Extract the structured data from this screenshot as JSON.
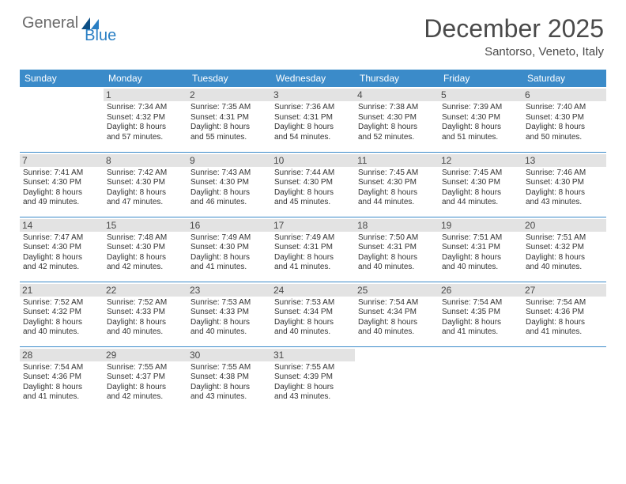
{
  "brand": {
    "general": "General",
    "blue": "Blue"
  },
  "title": "December 2025",
  "location": "Santorso, Veneto, Italy",
  "colors": {
    "header_bg": "#3b8bc9",
    "header_fg": "#ffffff",
    "daynum_bg": "#e3e3e3",
    "rule": "#3b8bc9",
    "logo_gray": "#6b6b6b",
    "logo_blue": "#2a7fc4",
    "sail_dark": "#0b4e85",
    "sail_light": "#2a7fc4"
  },
  "weekdays": [
    "Sunday",
    "Monday",
    "Tuesday",
    "Wednesday",
    "Thursday",
    "Friday",
    "Saturday"
  ],
  "weeks": [
    [
      {
        "n": "",
        "lines": []
      },
      {
        "n": "1",
        "lines": [
          "Sunrise: 7:34 AM",
          "Sunset: 4:32 PM",
          "Daylight: 8 hours",
          "and 57 minutes."
        ]
      },
      {
        "n": "2",
        "lines": [
          "Sunrise: 7:35 AM",
          "Sunset: 4:31 PM",
          "Daylight: 8 hours",
          "and 55 minutes."
        ]
      },
      {
        "n": "3",
        "lines": [
          "Sunrise: 7:36 AM",
          "Sunset: 4:31 PM",
          "Daylight: 8 hours",
          "and 54 minutes."
        ]
      },
      {
        "n": "4",
        "lines": [
          "Sunrise: 7:38 AM",
          "Sunset: 4:30 PM",
          "Daylight: 8 hours",
          "and 52 minutes."
        ]
      },
      {
        "n": "5",
        "lines": [
          "Sunrise: 7:39 AM",
          "Sunset: 4:30 PM",
          "Daylight: 8 hours",
          "and 51 minutes."
        ]
      },
      {
        "n": "6",
        "lines": [
          "Sunrise: 7:40 AM",
          "Sunset: 4:30 PM",
          "Daylight: 8 hours",
          "and 50 minutes."
        ]
      }
    ],
    [
      {
        "n": "7",
        "lines": [
          "Sunrise: 7:41 AM",
          "Sunset: 4:30 PM",
          "Daylight: 8 hours",
          "and 49 minutes."
        ]
      },
      {
        "n": "8",
        "lines": [
          "Sunrise: 7:42 AM",
          "Sunset: 4:30 PM",
          "Daylight: 8 hours",
          "and 47 minutes."
        ]
      },
      {
        "n": "9",
        "lines": [
          "Sunrise: 7:43 AM",
          "Sunset: 4:30 PM",
          "Daylight: 8 hours",
          "and 46 minutes."
        ]
      },
      {
        "n": "10",
        "lines": [
          "Sunrise: 7:44 AM",
          "Sunset: 4:30 PM",
          "Daylight: 8 hours",
          "and 45 minutes."
        ]
      },
      {
        "n": "11",
        "lines": [
          "Sunrise: 7:45 AM",
          "Sunset: 4:30 PM",
          "Daylight: 8 hours",
          "and 44 minutes."
        ]
      },
      {
        "n": "12",
        "lines": [
          "Sunrise: 7:45 AM",
          "Sunset: 4:30 PM",
          "Daylight: 8 hours",
          "and 44 minutes."
        ]
      },
      {
        "n": "13",
        "lines": [
          "Sunrise: 7:46 AM",
          "Sunset: 4:30 PM",
          "Daylight: 8 hours",
          "and 43 minutes."
        ]
      }
    ],
    [
      {
        "n": "14",
        "lines": [
          "Sunrise: 7:47 AM",
          "Sunset: 4:30 PM",
          "Daylight: 8 hours",
          "and 42 minutes."
        ]
      },
      {
        "n": "15",
        "lines": [
          "Sunrise: 7:48 AM",
          "Sunset: 4:30 PM",
          "Daylight: 8 hours",
          "and 42 minutes."
        ]
      },
      {
        "n": "16",
        "lines": [
          "Sunrise: 7:49 AM",
          "Sunset: 4:30 PM",
          "Daylight: 8 hours",
          "and 41 minutes."
        ]
      },
      {
        "n": "17",
        "lines": [
          "Sunrise: 7:49 AM",
          "Sunset: 4:31 PM",
          "Daylight: 8 hours",
          "and 41 minutes."
        ]
      },
      {
        "n": "18",
        "lines": [
          "Sunrise: 7:50 AM",
          "Sunset: 4:31 PM",
          "Daylight: 8 hours",
          "and 40 minutes."
        ]
      },
      {
        "n": "19",
        "lines": [
          "Sunrise: 7:51 AM",
          "Sunset: 4:31 PM",
          "Daylight: 8 hours",
          "and 40 minutes."
        ]
      },
      {
        "n": "20",
        "lines": [
          "Sunrise: 7:51 AM",
          "Sunset: 4:32 PM",
          "Daylight: 8 hours",
          "and 40 minutes."
        ]
      }
    ],
    [
      {
        "n": "21",
        "lines": [
          "Sunrise: 7:52 AM",
          "Sunset: 4:32 PM",
          "Daylight: 8 hours",
          "and 40 minutes."
        ]
      },
      {
        "n": "22",
        "lines": [
          "Sunrise: 7:52 AM",
          "Sunset: 4:33 PM",
          "Daylight: 8 hours",
          "and 40 minutes."
        ]
      },
      {
        "n": "23",
        "lines": [
          "Sunrise: 7:53 AM",
          "Sunset: 4:33 PM",
          "Daylight: 8 hours",
          "and 40 minutes."
        ]
      },
      {
        "n": "24",
        "lines": [
          "Sunrise: 7:53 AM",
          "Sunset: 4:34 PM",
          "Daylight: 8 hours",
          "and 40 minutes."
        ]
      },
      {
        "n": "25",
        "lines": [
          "Sunrise: 7:54 AM",
          "Sunset: 4:34 PM",
          "Daylight: 8 hours",
          "and 40 minutes."
        ]
      },
      {
        "n": "26",
        "lines": [
          "Sunrise: 7:54 AM",
          "Sunset: 4:35 PM",
          "Daylight: 8 hours",
          "and 41 minutes."
        ]
      },
      {
        "n": "27",
        "lines": [
          "Sunrise: 7:54 AM",
          "Sunset: 4:36 PM",
          "Daylight: 8 hours",
          "and 41 minutes."
        ]
      }
    ],
    [
      {
        "n": "28",
        "lines": [
          "Sunrise: 7:54 AM",
          "Sunset: 4:36 PM",
          "Daylight: 8 hours",
          "and 41 minutes."
        ]
      },
      {
        "n": "29",
        "lines": [
          "Sunrise: 7:55 AM",
          "Sunset: 4:37 PM",
          "Daylight: 8 hours",
          "and 42 minutes."
        ]
      },
      {
        "n": "30",
        "lines": [
          "Sunrise: 7:55 AM",
          "Sunset: 4:38 PM",
          "Daylight: 8 hours",
          "and 43 minutes."
        ]
      },
      {
        "n": "31",
        "lines": [
          "Sunrise: 7:55 AM",
          "Sunset: 4:39 PM",
          "Daylight: 8 hours",
          "and 43 minutes."
        ]
      },
      {
        "n": "",
        "lines": []
      },
      {
        "n": "",
        "lines": []
      },
      {
        "n": "",
        "lines": []
      }
    ]
  ]
}
